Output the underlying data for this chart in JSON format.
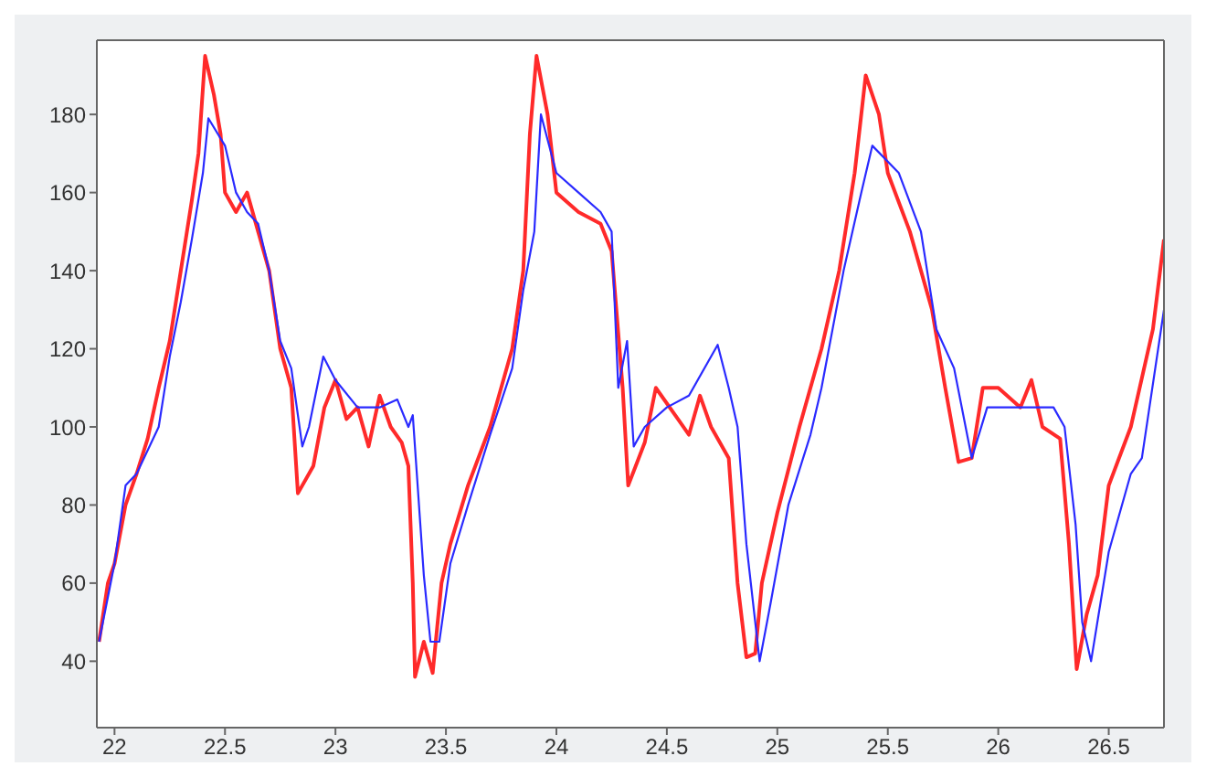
{
  "chart_data": {
    "type": "line",
    "xlim": [
      21.92,
      26.75
    ],
    "ylim": [
      23,
      199
    ],
    "xticks": [
      22,
      22.5,
      23,
      23.5,
      24,
      24.5,
      25,
      25.5,
      26,
      26.5
    ],
    "yticks": [
      40,
      60,
      80,
      100,
      120,
      140,
      160,
      180
    ],
    "grid": false,
    "marker": "none",
    "line_style": "solid",
    "series": [
      {
        "color": "#ff2a2a",
        "x": [
          21.93,
          21.97,
          22.0,
          22.05,
          22.1,
          22.15,
          22.2,
          22.25,
          22.3,
          22.35,
          22.38,
          22.41,
          22.45,
          22.48,
          22.5,
          22.55,
          22.6,
          22.65,
          22.7,
          22.75,
          22.8,
          22.83,
          22.9,
          22.95,
          23.0,
          23.05,
          23.1,
          23.15,
          23.2,
          23.25,
          23.3,
          23.33,
          23.35,
          23.36,
          23.4,
          23.44,
          23.48,
          23.52,
          23.6,
          23.7,
          23.8,
          23.85,
          23.88,
          23.91,
          23.96,
          24.0,
          24.1,
          24.2,
          24.25,
          24.3,
          24.325,
          24.4,
          24.45,
          24.55,
          24.6,
          24.65,
          24.7,
          24.78,
          24.82,
          24.86,
          24.9,
          24.93,
          25.0,
          25.1,
          25.2,
          25.28,
          25.35,
          25.4,
          25.46,
          25.5,
          25.6,
          25.7,
          25.76,
          25.82,
          25.88,
          25.93,
          26.0,
          26.1,
          26.15,
          26.2,
          26.28,
          26.32,
          26.355,
          26.4,
          26.45,
          26.5,
          26.6,
          26.7,
          26.75
        ],
        "values": [
          45,
          60,
          65,
          80,
          88,
          97,
          110,
          122,
          140,
          158,
          170,
          195,
          185,
          175,
          160,
          155,
          160,
          150,
          140,
          120,
          110,
          83,
          90,
          105,
          112,
          102,
          105,
          95,
          108,
          100,
          96,
          90,
          60,
          36,
          45,
          37,
          60,
          70,
          85,
          100,
          120,
          140,
          175,
          195,
          180,
          160,
          155,
          152,
          145,
          110,
          85,
          96,
          110,
          102,
          98,
          108,
          100,
          92,
          60,
          41,
          42,
          60,
          78,
          100,
          120,
          140,
          165,
          190,
          180,
          165,
          150,
          130,
          110,
          91,
          92,
          110,
          110,
          105,
          112,
          100,
          97,
          70,
          38,
          52,
          62,
          85,
          100,
          125,
          148
        ]
      },
      {
        "color": "#2a2aff",
        "x": [
          21.93,
          22.0,
          22.05,
          22.1,
          22.2,
          22.25,
          22.3,
          22.35,
          22.4,
          22.425,
          22.5,
          22.55,
          22.6,
          22.65,
          22.7,
          22.75,
          22.8,
          22.85,
          22.88,
          22.945,
          23.0,
          23.1,
          23.2,
          23.28,
          23.33,
          23.35,
          23.4,
          23.43,
          23.47,
          23.52,
          23.6,
          23.7,
          23.8,
          23.85,
          23.9,
          23.93,
          24.0,
          24.1,
          24.2,
          24.25,
          24.28,
          24.32,
          24.35,
          24.4,
          24.5,
          24.6,
          24.73,
          24.78,
          24.82,
          24.86,
          24.92,
          24.97,
          25.05,
          25.15,
          25.2,
          25.3,
          25.38,
          25.43,
          25.55,
          25.65,
          25.72,
          25.8,
          25.88,
          25.95,
          26.05,
          26.15,
          26.25,
          26.3,
          26.35,
          26.38,
          26.42,
          26.5,
          26.6,
          26.65,
          26.75
        ],
        "values": [
          45,
          65,
          85,
          88,
          100,
          118,
          132,
          148,
          165,
          179,
          172,
          160,
          155,
          152,
          140,
          122,
          115,
          95,
          100,
          118,
          112,
          105,
          105,
          107,
          100,
          103,
          62,
          45,
          45,
          65,
          80,
          98,
          115,
          135,
          150,
          180,
          165,
          160,
          155,
          150,
          110,
          122,
          95,
          100,
          105,
          108,
          121,
          110,
          100,
          70,
          40,
          55,
          80,
          98,
          110,
          140,
          160,
          172,
          165,
          150,
          125,
          115,
          92,
          105,
          105,
          105,
          105,
          100,
          75,
          50,
          40,
          68,
          88,
          92,
          130
        ]
      }
    ]
  }
}
